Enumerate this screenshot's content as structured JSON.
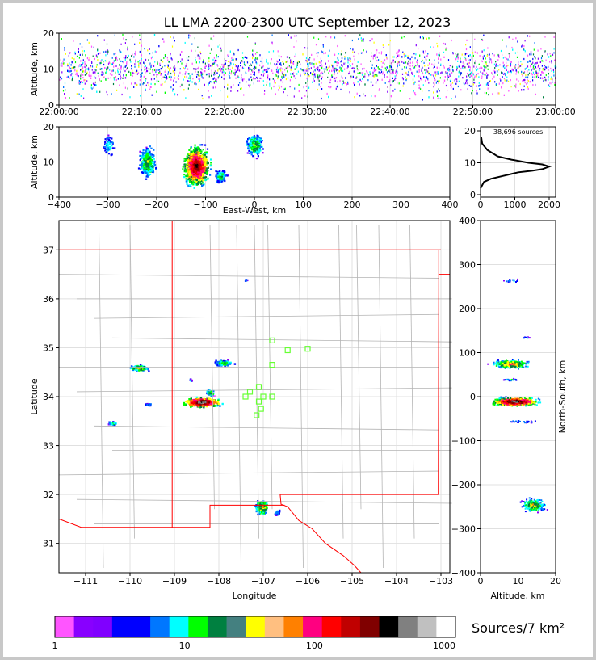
{
  "title": "LL LMA 2200-2300 UTC September 12, 2023",
  "colors": {
    "frame": "#c8c8c8",
    "state": "#ff0000",
    "county": "#b4b4b4",
    "station": "#66ff33",
    "grid": "#e0e0e0"
  },
  "panels": {
    "time_height": {
      "ylabel": "Altitude, km",
      "yticks": [
        "0",
        "10",
        "20"
      ],
      "xticks": [
        "22:00:00",
        "22:10:00",
        "22:20:00",
        "22:30:00",
        "22:40:00",
        "22:50:00",
        "23:00:00"
      ]
    },
    "ew_height": {
      "ylabel": "Altitude, km",
      "xlabel": "East-West, km",
      "yticks": [
        "0",
        "10",
        "20"
      ],
      "xticks": [
        "−400",
        "−300",
        "−200",
        "−100",
        "0",
        "100",
        "200",
        "300",
        "400"
      ]
    },
    "histogram": {
      "label": "38,696 sources",
      "xticks": [
        "0",
        "1000",
        "2000"
      ],
      "yticks": [
        "0",
        "10",
        "20"
      ]
    },
    "plan": {
      "xlabel": "Longitude",
      "ylabel": "Latitude",
      "xticks": [
        "−111",
        "−110",
        "−109",
        "−108",
        "−107",
        "−106",
        "−105",
        "−104",
        "−103"
      ],
      "yticks": [
        "31",
        "32",
        "33",
        "34",
        "35",
        "36",
        "37"
      ]
    },
    "ns_height": {
      "xlabel": "Altitude, km",
      "ylabel": "North-South, km",
      "xticks": [
        "0",
        "10",
        "20"
      ],
      "yticks": [
        "−400",
        "−300",
        "−200",
        "−100",
        "0",
        "100",
        "200",
        "300",
        "400"
      ]
    }
  },
  "colorbar": {
    "label": "Sources/7 km²",
    "ticks": [
      "1",
      "10",
      "100",
      "1000"
    ],
    "colors": [
      "#ff55ff",
      "#8800ff",
      "#8000ff",
      "#0000ff",
      "#0000ff",
      "#0077ff",
      "#00ffff",
      "#00ff00",
      "#008040",
      "#448080",
      "#ffff00",
      "#ffbf80",
      "#ff8000",
      "#ff0080",
      "#ff0000",
      "#c00000",
      "#800000",
      "#000000",
      "#808080",
      "#c0c0c0",
      "#ffffff"
    ]
  },
  "chart_data": [
    {
      "type": "scatter",
      "title": "LL LMA 2200-2300 UTC September 12, 2023",
      "xlabel": "",
      "ylabel": "Altitude, km",
      "xlim": [
        "22:00:00",
        "23:00:00"
      ],
      "ylim": [
        0,
        20
      ],
      "description": "source altitude vs time"
    },
    {
      "type": "heatmap",
      "xlabel": "East-West, km",
      "ylabel": "Altitude, km",
      "xlim": [
        -400,
        400
      ],
      "ylim": [
        0,
        20
      ],
      "clusters": [
        {
          "x": -300,
          "z": 15
        },
        {
          "x": -220,
          "z": 10
        },
        {
          "x": -120,
          "z": 9
        },
        {
          "x": -70,
          "z": 6
        },
        {
          "x": 0,
          "z": 15
        }
      ]
    },
    {
      "type": "line",
      "label": "38,696 sources",
      "xlim": [
        0,
        2000
      ],
      "ylim": [
        0,
        20
      ],
      "x": [
        0,
        100,
        300,
        700,
        1100,
        1500,
        1800,
        2000,
        1800,
        1400,
        900,
        500,
        200,
        50,
        20
      ],
      "y": [
        2,
        4,
        5,
        6,
        7,
        7.5,
        8,
        8.8,
        9.5,
        10,
        11,
        12,
        14,
        16,
        18
      ]
    },
    {
      "type": "heatmap",
      "xlabel": "Longitude",
      "ylabel": "Latitude",
      "xlim": [
        -111.6,
        -102.8
      ],
      "ylim": [
        30.4,
        37.6
      ],
      "clusters": [
        {
          "lon": -109.8,
          "lat": 34.6
        },
        {
          "lon": -108.4,
          "lat": 33.9
        },
        {
          "lon": -107.9,
          "lat": 34.7
        },
        {
          "lon": -107.1,
          "lat": 31.7
        },
        {
          "lon": -110.4,
          "lat": 33.5
        }
      ],
      "stations": [
        [
          -106.8,
          35.15
        ],
        [
          -106.45,
          34.95
        ],
        [
          -106.0,
          34.98
        ],
        [
          -106.8,
          34.65
        ],
        [
          -107.1,
          34.2
        ],
        [
          -107.3,
          34.1
        ],
        [
          -107.4,
          34.0
        ],
        [
          -107.0,
          34.0
        ],
        [
          -107.1,
          33.9
        ],
        [
          -106.8,
          34.0
        ],
        [
          -107.05,
          33.75
        ],
        [
          -107.15,
          33.62
        ]
      ]
    },
    {
      "type": "heatmap",
      "xlabel": "Altitude, km",
      "ylabel": "North-South, km",
      "xlim": [
        0,
        20
      ],
      "ylim": [
        -400,
        400
      ],
      "clusters": [
        {
          "z": 8,
          "y": 75
        },
        {
          "z": 9,
          "y": -10
        },
        {
          "z": 14,
          "y": -245
        },
        {
          "z": 8,
          "y": 270
        },
        {
          "z": 12,
          "y": 135
        }
      ]
    }
  ]
}
